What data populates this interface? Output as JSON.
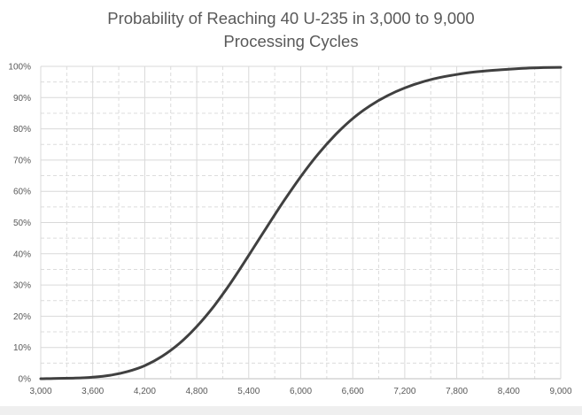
{
  "chart_data": {
    "type": "line",
    "title_lines": [
      "Probability of Reaching 40 U-235 in 3,000 to 9,000",
      "Processing Cycles"
    ],
    "xlabel": "",
    "ylabel": "",
    "xlim": [
      3000,
      9000
    ],
    "ylim": [
      0,
      1
    ],
    "x_ticks": [
      3000,
      3600,
      4200,
      4800,
      5400,
      6000,
      6600,
      7200,
      7800,
      8400,
      9000
    ],
    "x_tick_labels": [
      "3,000",
      "3,600",
      "4,200",
      "4,800",
      "5,400",
      "6,000",
      "6,600",
      "7,200",
      "7,800",
      "8,400",
      "9,000"
    ],
    "y_ticks": [
      0,
      0.1,
      0.2,
      0.3,
      0.4,
      0.5,
      0.6,
      0.7,
      0.8,
      0.9,
      1.0
    ],
    "y_tick_labels": [
      "0%",
      "10%",
      "20%",
      "30%",
      "40%",
      "50%",
      "60%",
      "70%",
      "80%",
      "90%",
      "100%"
    ],
    "grid": "major solid, minor dashed",
    "legend": "none",
    "line_color": "#404040",
    "series": [
      {
        "x": [
          3000,
          3200,
          3400,
          3600,
          3800,
          4000,
          4200,
          4400,
          4600,
          4800,
          5000,
          5200,
          5400,
          5600,
          5800,
          6000,
          6200,
          6400,
          6600,
          6800,
          7000,
          7200,
          7400,
          7600,
          7800,
          8000,
          8200,
          8400,
          8600,
          8800,
          9000
        ],
        "y": [
          0.0,
          0.001,
          0.002,
          0.005,
          0.011,
          0.023,
          0.042,
          0.072,
          0.113,
          0.167,
          0.233,
          0.31,
          0.395,
          0.482,
          0.567,
          0.647,
          0.719,
          0.781,
          0.833,
          0.874,
          0.906,
          0.931,
          0.95,
          0.964,
          0.974,
          0.982,
          0.987,
          0.991,
          0.994,
          0.996,
          0.997
        ]
      }
    ]
  }
}
